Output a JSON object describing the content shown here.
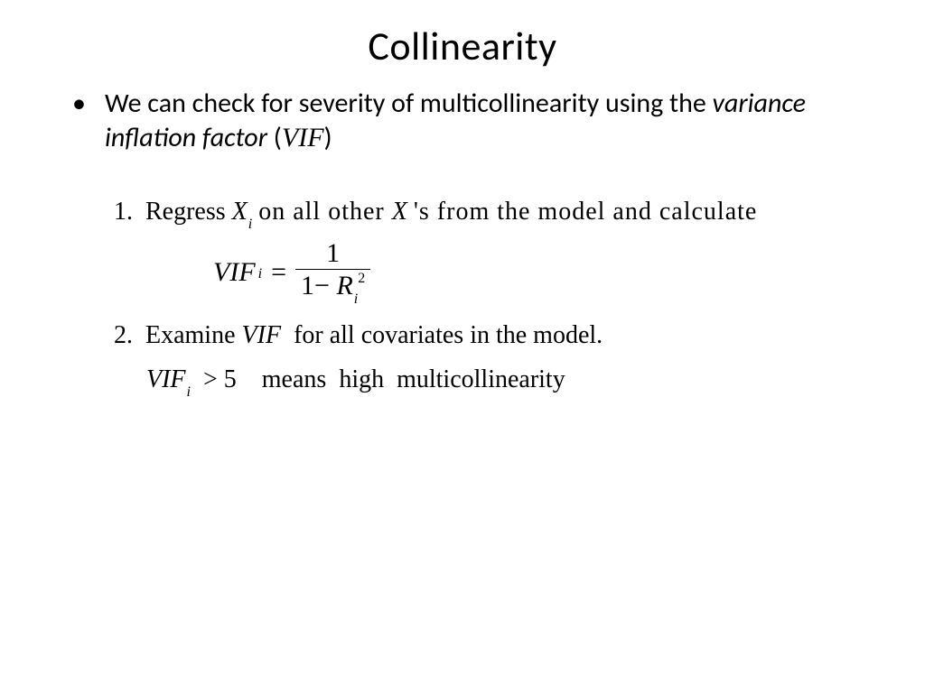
{
  "title": "Collinearity",
  "bullet": {
    "dot": "•",
    "prefix": "We can check for severity of multicollinearity using the ",
    "vif_long": "variance inflation factor",
    "open_paren": " (",
    "vif_short": "VIF",
    "close_paren": ")"
  },
  "steps": {
    "one": {
      "num": "1.",
      "a": "Regress ",
      "Xi_X": "X",
      "Xi_i": "i",
      "b": " on all other ",
      "X2": "X",
      "c": " 's from the model and calculate"
    },
    "formula": {
      "vif": "VIF",
      "i": "i",
      "eq": "=",
      "num": "1",
      "den_one": "1",
      "den_minus": "−",
      "den_R": "R",
      "den_i": "i",
      "den_sq": "2"
    },
    "two": {
      "num": "2.",
      "a": "Examine ",
      "vif": "VIF",
      "b": " for all covariates in the model."
    },
    "rule": {
      "vif": "VIF",
      "i": "i",
      "gt": ">",
      "five": "5",
      "text": "   means  high  multicollinearity"
    }
  }
}
